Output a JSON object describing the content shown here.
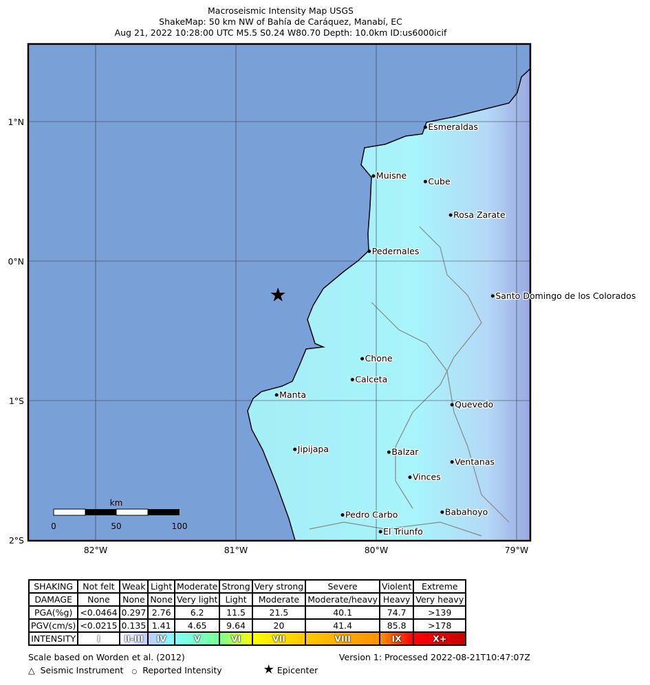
{
  "title": [
    "Macroseismic Intensity Map USGS",
    "ShakeMap: 50 km NW of Bahía de Caráquez, Manabí, EC",
    "Aug 21, 2022 10:28:00 UTC M5.5 S0.24 W80.70 Depth: 10.0km ID:us6000icif"
  ],
  "axes": {
    "lat_labels": [
      "1°N",
      "0°N",
      "1°S",
      "2°S"
    ],
    "lon_labels": [
      "82°W",
      "81°W",
      "80°W",
      "79°W"
    ]
  },
  "epicenter": {
    "lat": -0.24,
    "lon": -80.7,
    "icon": "star-icon"
  },
  "cities": [
    {
      "name": "Esmeraldas",
      "lat": 0.96,
      "lon": -79.65
    },
    {
      "name": "Muisne",
      "lat": 0.61,
      "lon": -80.02
    },
    {
      "name": "Cube",
      "lat": 0.57,
      "lon": -79.65
    },
    {
      "name": "Rosa Zarate",
      "lat": 0.33,
      "lon": -79.47
    },
    {
      "name": "Pedernales",
      "lat": 0.07,
      "lon": -80.05
    },
    {
      "name": "Santo Domingo de los Colorados",
      "lat": -0.25,
      "lon": -79.17
    },
    {
      "name": "Chone",
      "lat": -0.7,
      "lon": -80.1
    },
    {
      "name": "Calceta",
      "lat": -0.85,
      "lon": -80.17
    },
    {
      "name": "Manta",
      "lat": -0.96,
      "lon": -80.71
    },
    {
      "name": "Quevedo",
      "lat": -1.03,
      "lon": -79.46
    },
    {
      "name": "Jipijapa",
      "lat": -1.35,
      "lon": -80.58
    },
    {
      "name": "Balzar",
      "lat": -1.37,
      "lon": -79.91
    },
    {
      "name": "Ventanas",
      "lat": -1.44,
      "lon": -79.46
    },
    {
      "name": "Vinces",
      "lat": -1.55,
      "lon": -79.76
    },
    {
      "name": "Babahoyo",
      "lat": -1.8,
      "lon": -79.53
    },
    {
      "name": "Pedro Carbo",
      "lat": -1.82,
      "lon": -80.24
    },
    {
      "name": "El Triunfo",
      "lat": -1.94,
      "lon": -79.97
    }
  ],
  "scale_bar": {
    "unit": "km",
    "labels": [
      "0",
      "50",
      "100"
    ]
  },
  "colors": {
    "ocean": "#7aa0d8",
    "land": "#a8f4fb",
    "epicenter": "#000000"
  },
  "legend": {
    "rows": [
      [
        "SHAKING",
        "Not felt",
        "Weak",
        "Light",
        "Moderate",
        "Strong",
        "Very strong",
        "Severe",
        "Violent",
        "Extreme"
      ],
      [
        "DAMAGE",
        "None",
        "None",
        "None",
        "Very light",
        "Light",
        "Moderate",
        "Moderate/heavy",
        "Heavy",
        "Very heavy"
      ],
      [
        "PGA(%g)",
        "<0.0464",
        "0.297",
        "2.76",
        "6.2",
        "11.5",
        "21.5",
        "40.1",
        "74.7",
        ">139"
      ],
      [
        "PGV(cm/s)",
        "<0.0215",
        "0.135",
        "1.41",
        "4.65",
        "9.64",
        "20",
        "41.4",
        "85.8",
        ">178"
      ]
    ],
    "intensity": [
      "INTENSITY",
      "I",
      "II-III",
      "IV",
      "V",
      "VI",
      "VII",
      "VIII",
      "IX",
      "X+"
    ],
    "intensity_colors": [
      "#ffffff",
      "#ffffff",
      "#bfccff",
      "#80ffff",
      "#7aff93",
      "#ffff00",
      "#ffc800",
      "#ff9100",
      "#ff0000",
      "#c80000"
    ]
  },
  "footer": {
    "scale_note": "Scale based on Worden et al. (2012)",
    "version": "Version 1: Processed 2022-08-21T10:47:07Z",
    "instrument": "Seismic Instrument",
    "reported": "Reported Intensity",
    "epicenter": "Epicenter"
  }
}
